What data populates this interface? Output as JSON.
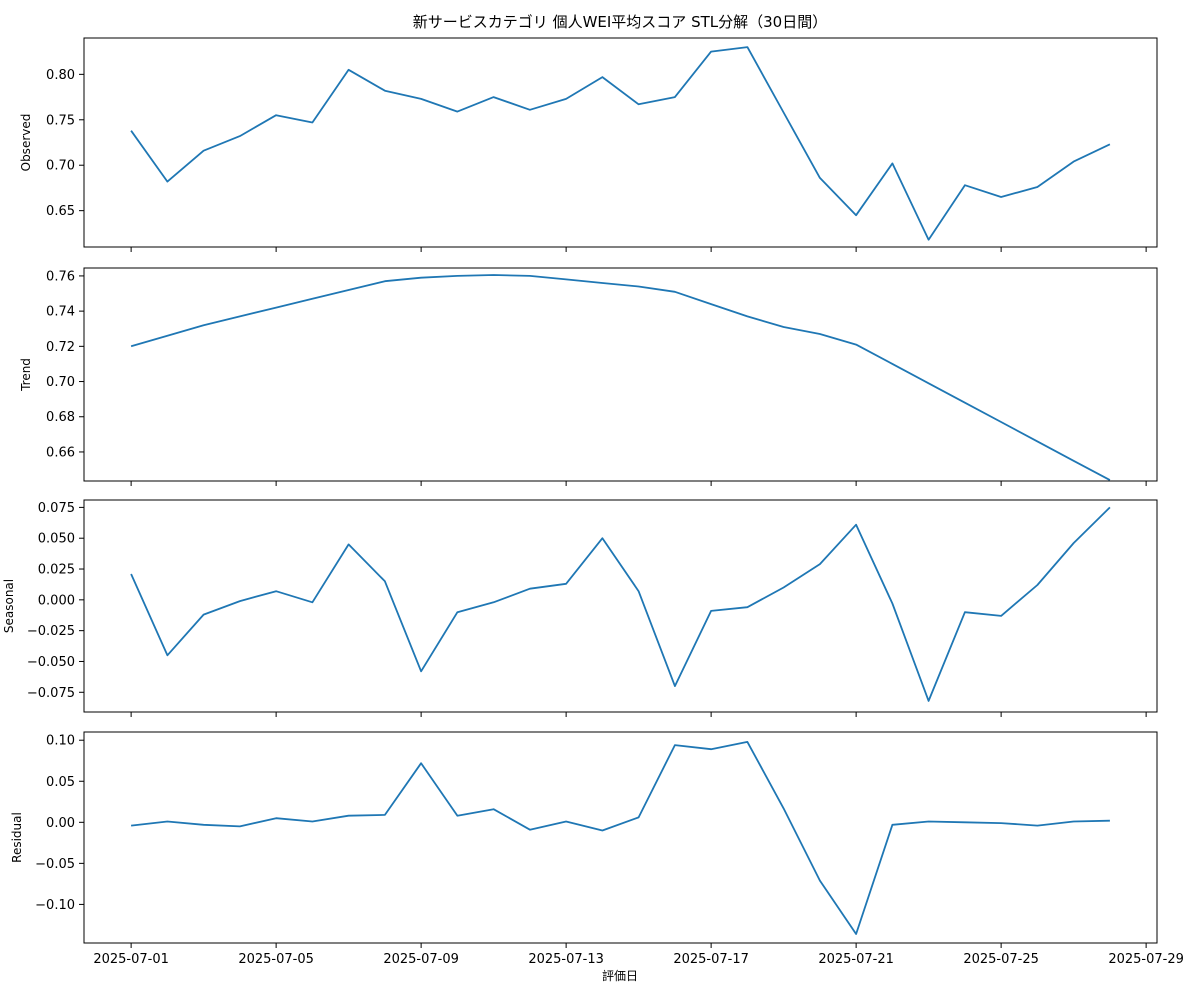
{
  "chart_data": {
    "type": "line",
    "title": "新サービスカテゴリ 個人WEI平均スコア STL分解（30日間）",
    "xlabel": "評価日",
    "line_color": "#1f77b4",
    "x_tick_labels": [
      "2025-07-01",
      "2025-07-05",
      "2025-07-09",
      "2025-07-13",
      "2025-07-17",
      "2025-07-21",
      "2025-07-25",
      "2025-07-29"
    ],
    "x_tick_days": [
      0,
      4,
      8,
      12,
      16,
      20,
      24,
      28
    ],
    "x": [
      "2025-07-01",
      "2025-07-02",
      "2025-07-03",
      "2025-07-04",
      "2025-07-05",
      "2025-07-06",
      "2025-07-07",
      "2025-07-08",
      "2025-07-09",
      "2025-07-10",
      "2025-07-11",
      "2025-07-12",
      "2025-07-13",
      "2025-07-14",
      "2025-07-15",
      "2025-07-16",
      "2025-07-17",
      "2025-07-18",
      "2025-07-19",
      "2025-07-20",
      "2025-07-21",
      "2025-07-22",
      "2025-07-23",
      "2025-07-24",
      "2025-07-25",
      "2025-07-26",
      "2025-07-27",
      "2025-07-28"
    ],
    "xlim": [
      "2025-06-29T16:48",
      "2025-07-29T07:12"
    ],
    "panels": [
      {
        "name": "Observed",
        "ylabel": "Observed",
        "ylim": [
          0.61,
          0.84
        ],
        "yticks": [
          0.65,
          0.7,
          0.75,
          0.8
        ],
        "ytick_labels": [
          "0.65",
          "0.70",
          "0.75",
          "0.80"
        ],
        "values": [
          0.738,
          0.682,
          0.716,
          0.732,
          0.755,
          0.747,
          0.805,
          0.782,
          0.773,
          0.759,
          0.775,
          0.761,
          0.773,
          0.797,
          0.767,
          0.775,
          0.825,
          0.83,
          0.758,
          0.686,
          0.645,
          0.702,
          0.618,
          0.678,
          0.665,
          0.676,
          0.704,
          0.723
        ]
      },
      {
        "name": "Trend",
        "ylabel": "Trend",
        "ylim": [
          0.6435,
          0.7645
        ],
        "yticks": [
          0.66,
          0.68,
          0.7,
          0.72,
          0.74,
          0.76
        ],
        "ytick_labels": [
          "0.66",
          "0.68",
          "0.70",
          "0.72",
          "0.74",
          "0.76"
        ],
        "values": [
          0.72,
          0.726,
          0.732,
          0.737,
          0.742,
          0.747,
          0.752,
          0.757,
          0.759,
          0.76,
          0.7605,
          0.76,
          0.758,
          0.756,
          0.754,
          0.751,
          0.744,
          0.737,
          0.731,
          0.727,
          0.721,
          0.71,
          0.699,
          0.688,
          0.677,
          0.666,
          0.655,
          0.644
        ]
      },
      {
        "name": "Seasonal",
        "ylabel": "Seasonal",
        "ylim": [
          -0.091,
          0.081
        ],
        "yticks": [
          -0.075,
          -0.05,
          -0.025,
          0.0,
          0.025,
          0.05,
          0.075
        ],
        "ytick_labels": [
          "−0.075",
          "−0.050",
          "−0.025",
          "0.000",
          "0.025",
          "0.050",
          "0.075"
        ],
        "values": [
          0.021,
          -0.045,
          -0.012,
          -0.001,
          0.007,
          -0.002,
          0.045,
          0.015,
          -0.058,
          -0.01,
          -0.002,
          0.009,
          0.013,
          0.05,
          0.007,
          -0.07,
          -0.009,
          -0.006,
          0.01,
          0.029,
          0.061,
          -0.003,
          -0.082,
          -0.01,
          -0.013,
          0.012,
          0.046,
          0.075
        ]
      },
      {
        "name": "Residual",
        "ylabel": "Residual",
        "ylim": [
          -0.147,
          0.11
        ],
        "yticks": [
          -0.1,
          -0.05,
          0.0,
          0.05,
          0.1
        ],
        "ytick_labels": [
          "−0.10",
          "−0.05",
          "0.00",
          "0.05",
          "0.10"
        ],
        "values": [
          -0.004,
          0.001,
          -0.003,
          -0.005,
          0.005,
          0.001,
          0.008,
          0.009,
          0.072,
          0.008,
          0.016,
          -0.009,
          0.001,
          -0.01,
          0.006,
          0.094,
          0.089,
          0.098,
          0.017,
          -0.071,
          -0.136,
          -0.003,
          0.001,
          0.0,
          -0.001,
          -0.004,
          0.001,
          0.002
        ]
      }
    ]
  }
}
